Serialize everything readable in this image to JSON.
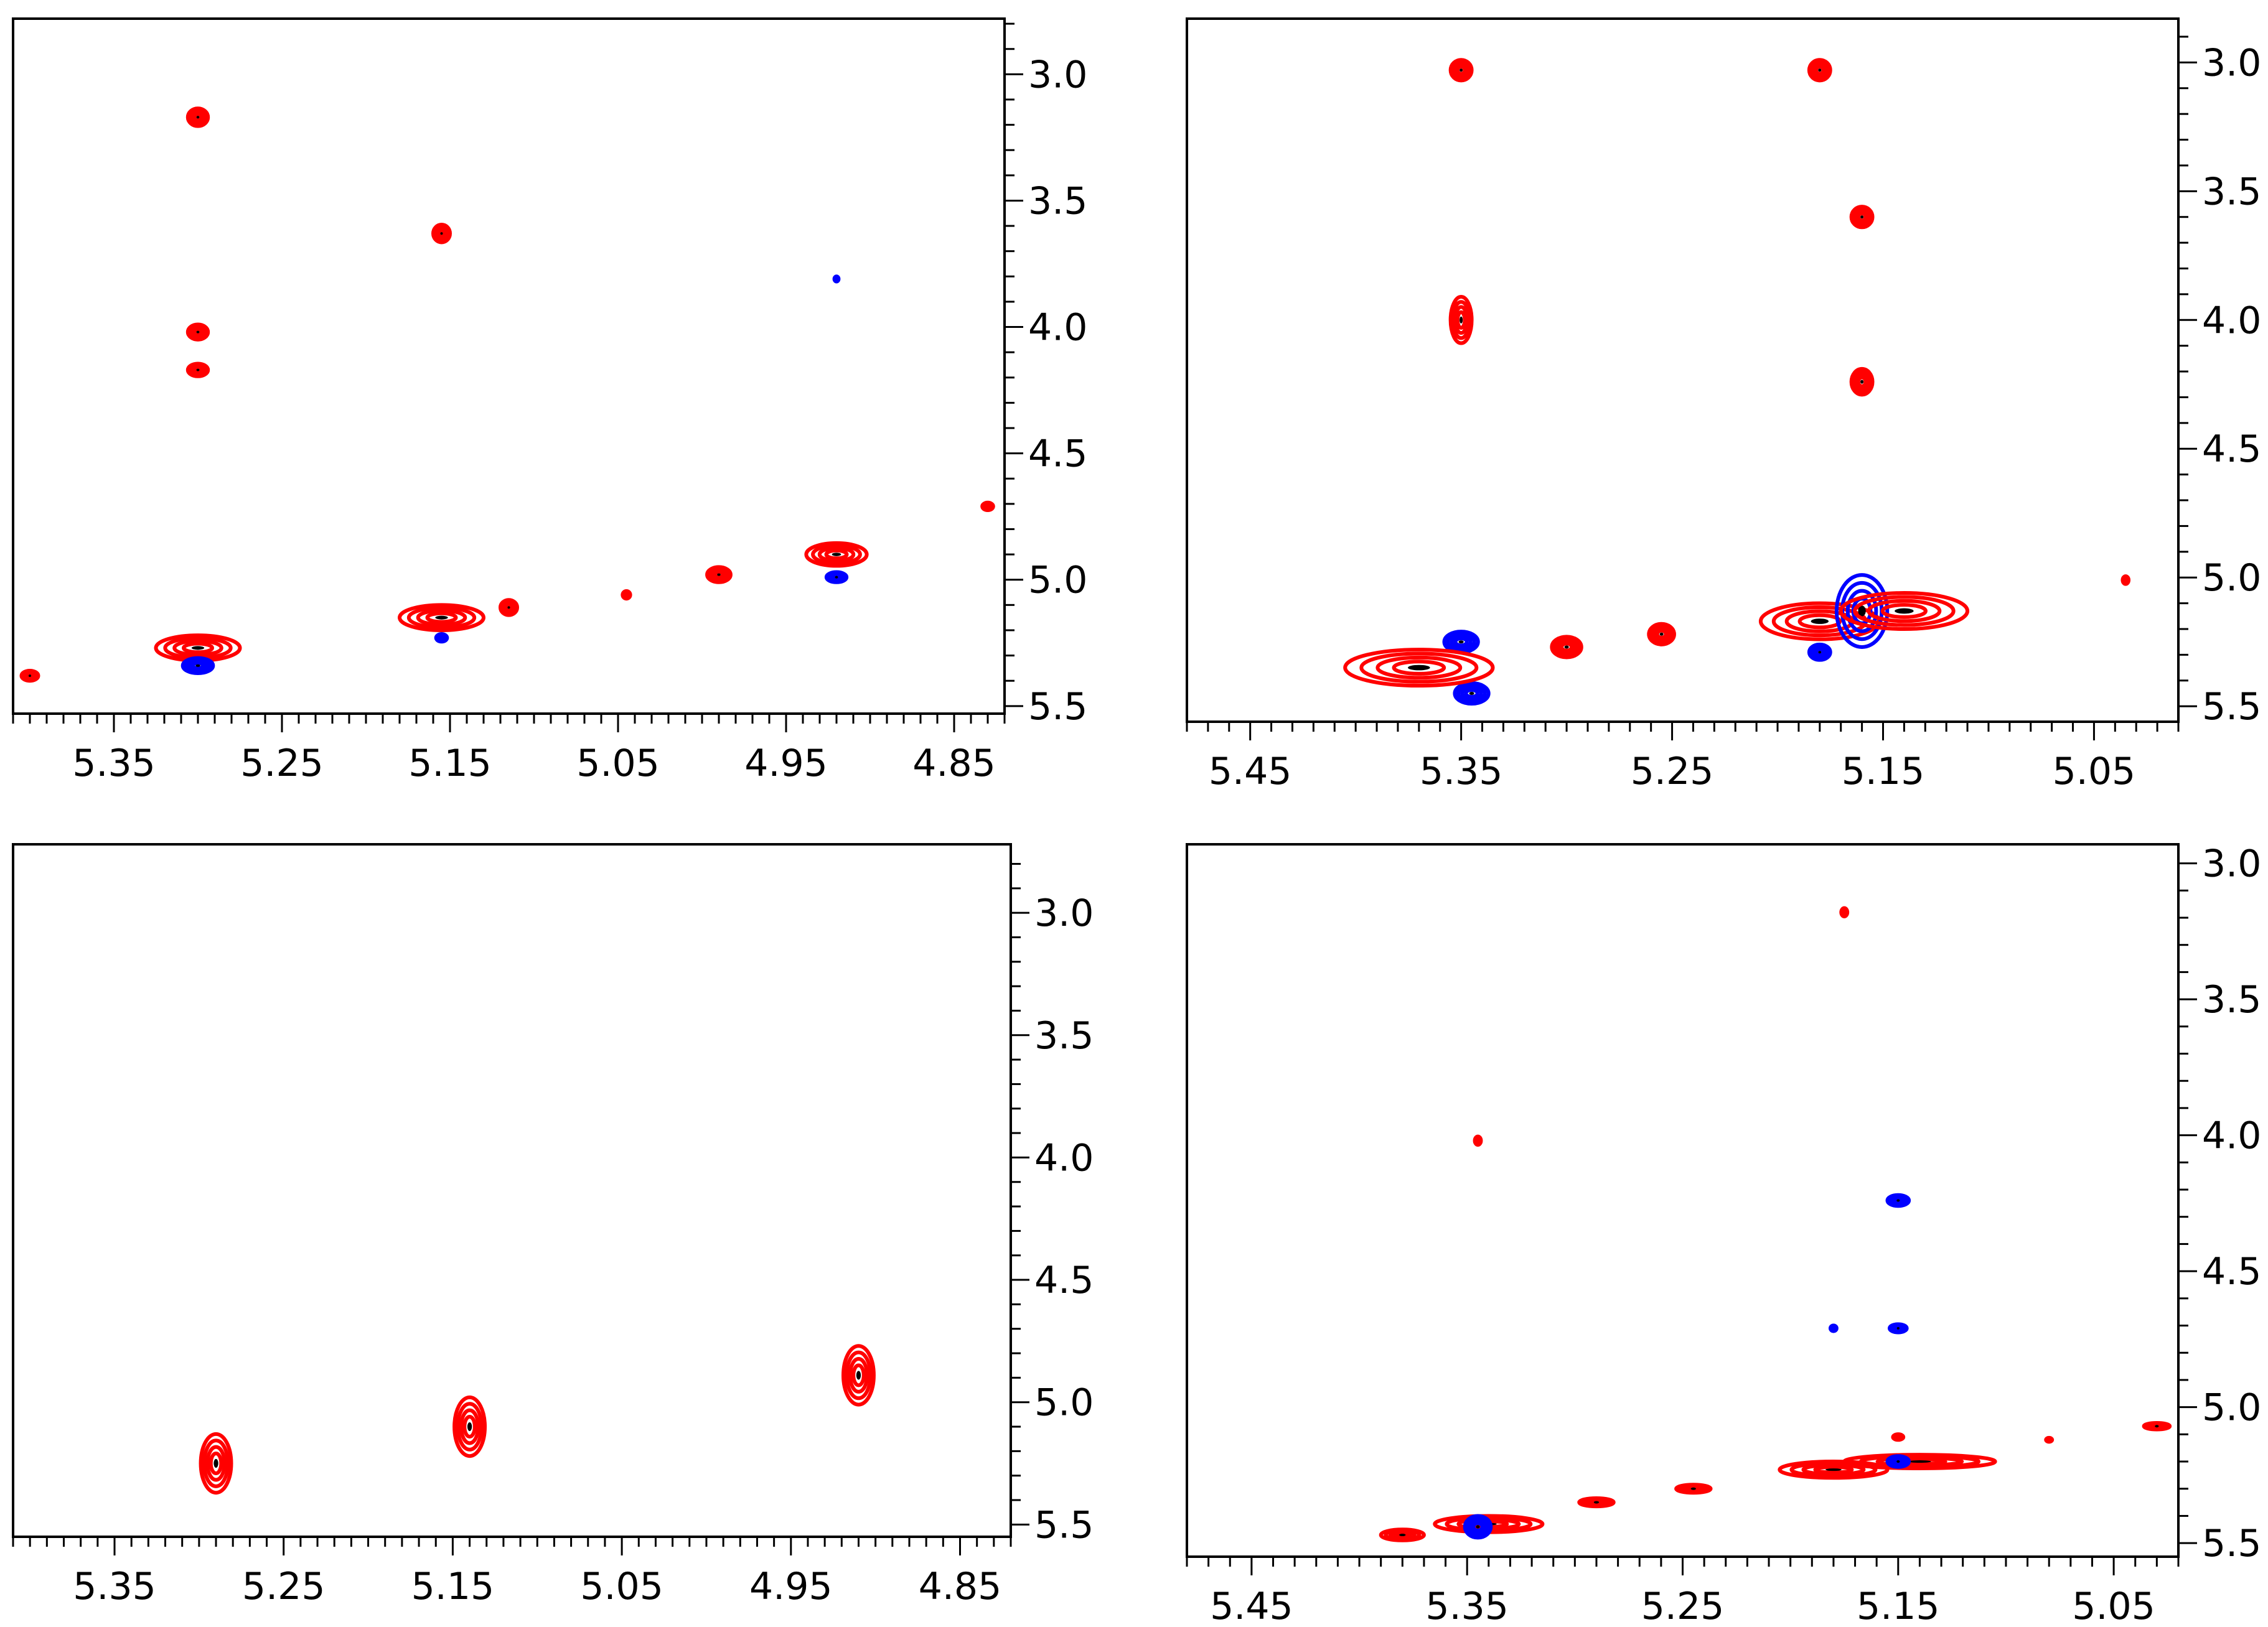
{
  "colors": {
    "positive": "#ff0000",
    "negative": "#0000ff",
    "axis": "#000000"
  },
  "chart_data": [
    {
      "type": "nmr-2d-contour",
      "position": "top-left",
      "title": "",
      "xlabel": "",
      "ylabel": "",
      "xlim": [
        5.41,
        4.82
      ],
      "ylim": [
        2.78,
        5.53
      ],
      "x_ticks": [
        "5.35",
        "5.25",
        "5.15",
        "5.05",
        "4.95",
        "4.85"
      ],
      "y_ticks": [
        "3.0",
        "3.5",
        "4.0",
        "4.5",
        "5.0",
        "5.5"
      ],
      "peaks": [
        {
          "x": 5.3,
          "y": 3.17,
          "rx": 0.006,
          "ry": 0.035,
          "sign": "positive"
        },
        {
          "x": 5.3,
          "y": 4.02,
          "rx": 0.006,
          "ry": 0.03,
          "sign": "positive"
        },
        {
          "x": 5.3,
          "y": 4.17,
          "rx": 0.006,
          "ry": 0.025,
          "sign": "positive"
        },
        {
          "x": 5.155,
          "y": 3.63,
          "rx": 0.005,
          "ry": 0.035,
          "sign": "positive"
        },
        {
          "x": 5.3,
          "y": 5.27,
          "rx": 0.025,
          "ry": 0.05,
          "sign": "positive"
        },
        {
          "x": 5.3,
          "y": 5.34,
          "rx": 0.009,
          "ry": 0.03,
          "sign": "negative"
        },
        {
          "x": 5.155,
          "y": 5.15,
          "rx": 0.025,
          "ry": 0.05,
          "sign": "positive"
        },
        {
          "x": 5.155,
          "y": 5.23,
          "rx": 0.004,
          "ry": 0.02,
          "sign": "negative"
        },
        {
          "x": 5.115,
          "y": 5.11,
          "rx": 0.005,
          "ry": 0.03,
          "sign": "positive"
        },
        {
          "x": 5.045,
          "y": 5.06,
          "rx": 0.003,
          "ry": 0.02,
          "sign": "positive"
        },
        {
          "x": 4.99,
          "y": 4.98,
          "rx": 0.007,
          "ry": 0.03,
          "sign": "positive"
        },
        {
          "x": 4.92,
          "y": 4.9,
          "rx": 0.018,
          "ry": 0.045,
          "sign": "positive"
        },
        {
          "x": 4.92,
          "y": 4.99,
          "rx": 0.006,
          "ry": 0.02,
          "sign": "negative"
        },
        {
          "x": 4.92,
          "y": 3.81,
          "rx": 0.002,
          "ry": 0.015,
          "sign": "negative"
        },
        {
          "x": 5.4,
          "y": 5.38,
          "rx": 0.005,
          "ry": 0.02,
          "sign": "positive"
        },
        {
          "x": 4.83,
          "y": 4.71,
          "rx": 0.004,
          "ry": 0.02,
          "sign": "positive"
        }
      ]
    },
    {
      "type": "nmr-2d-contour",
      "position": "top-right",
      "title": "",
      "xlabel": "",
      "ylabel": "",
      "xlim": [
        5.48,
        5.01
      ],
      "ylim": [
        2.83,
        5.56
      ],
      "x_ticks": [
        "5.45",
        "5.35",
        "5.25",
        "5.15",
        "5.05"
      ],
      "y_ticks": [
        "3.0",
        "3.5",
        "4.0",
        "4.5",
        "5.0",
        "5.5"
      ],
      "peaks": [
        {
          "x": 5.35,
          "y": 3.03,
          "rx": 0.005,
          "ry": 0.04,
          "sign": "positive"
        },
        {
          "x": 5.35,
          "y": 4.0,
          "rx": 0.005,
          "ry": 0.09,
          "sign": "positive"
        },
        {
          "x": 5.18,
          "y": 3.03,
          "rx": 0.005,
          "ry": 0.04,
          "sign": "positive"
        },
        {
          "x": 5.16,
          "y": 3.6,
          "rx": 0.005,
          "ry": 0.04,
          "sign": "positive"
        },
        {
          "x": 5.16,
          "y": 4.24,
          "rx": 0.005,
          "ry": 0.05,
          "sign": "positive"
        },
        {
          "x": 5.35,
          "y": 5.25,
          "rx": 0.008,
          "ry": 0.04,
          "sign": "negative"
        },
        {
          "x": 5.345,
          "y": 5.45,
          "rx": 0.008,
          "ry": 0.04,
          "sign": "negative"
        },
        {
          "x": 5.37,
          "y": 5.35,
          "rx": 0.035,
          "ry": 0.07,
          "sign": "positive"
        },
        {
          "x": 5.3,
          "y": 5.27,
          "rx": 0.007,
          "ry": 0.04,
          "sign": "positive"
        },
        {
          "x": 5.255,
          "y": 5.22,
          "rx": 0.006,
          "ry": 0.04,
          "sign": "positive"
        },
        {
          "x": 5.18,
          "y": 5.17,
          "rx": 0.028,
          "ry": 0.07,
          "sign": "positive"
        },
        {
          "x": 5.16,
          "y": 5.13,
          "rx": 0.012,
          "ry": 0.14,
          "sign": "negative"
        },
        {
          "x": 5.14,
          "y": 5.13,
          "rx": 0.03,
          "ry": 0.07,
          "sign": "positive"
        },
        {
          "x": 5.18,
          "y": 5.29,
          "rx": 0.005,
          "ry": 0.03,
          "sign": "negative"
        },
        {
          "x": 5.035,
          "y": 5.01,
          "rx": 0.002,
          "ry": 0.02,
          "sign": "positive"
        }
      ]
    },
    {
      "type": "nmr-2d-contour",
      "position": "bottom-left",
      "title": "",
      "xlabel": "",
      "ylabel": "",
      "xlim": [
        5.41,
        4.82
      ],
      "ylim": [
        2.72,
        5.55
      ],
      "x_ticks": [
        "5.35",
        "5.25",
        "5.15",
        "5.05",
        "4.95",
        "4.85"
      ],
      "y_ticks": [
        "3.0",
        "3.5",
        "4.0",
        "4.5",
        "5.0",
        "5.5"
      ],
      "peaks": [
        {
          "x": 5.29,
          "y": 5.25,
          "rx": 0.009,
          "ry": 0.12,
          "sign": "positive"
        },
        {
          "x": 5.14,
          "y": 5.1,
          "rx": 0.009,
          "ry": 0.12,
          "sign": "positive"
        },
        {
          "x": 4.91,
          "y": 4.89,
          "rx": 0.009,
          "ry": 0.12,
          "sign": "positive"
        }
      ]
    },
    {
      "type": "nmr-2d-contour",
      "position": "bottom-right",
      "title": "",
      "xlabel": "",
      "ylabel": "",
      "xlim": [
        5.48,
        5.02
      ],
      "ylim": [
        2.93,
        5.55
      ],
      "x_ticks": [
        "5.45",
        "5.35",
        "5.25",
        "5.15",
        "5.05"
      ],
      "y_ticks": [
        "3.0",
        "3.5",
        "4.0",
        "4.5",
        "5.0",
        "5.5"
      ],
      "peaks": [
        {
          "x": 5.175,
          "y": 3.18,
          "rx": 0.002,
          "ry": 0.02,
          "sign": "positive"
        },
        {
          "x": 5.345,
          "y": 4.02,
          "rx": 0.002,
          "ry": 0.02,
          "sign": "positive"
        },
        {
          "x": 5.15,
          "y": 4.24,
          "rx": 0.005,
          "ry": 0.02,
          "sign": "negative"
        },
        {
          "x": 5.15,
          "y": 4.71,
          "rx": 0.004,
          "ry": 0.015,
          "sign": "negative"
        },
        {
          "x": 5.18,
          "y": 4.71,
          "rx": 0.002,
          "ry": 0.015,
          "sign": "negative"
        },
        {
          "x": 5.38,
          "y": 5.47,
          "rx": 0.01,
          "ry": 0.02,
          "sign": "positive"
        },
        {
          "x": 5.34,
          "y": 5.43,
          "rx": 0.025,
          "ry": 0.03,
          "sign": "positive"
        },
        {
          "x": 5.345,
          "y": 5.44,
          "rx": 0.006,
          "ry": 0.04,
          "sign": "negative"
        },
        {
          "x": 5.29,
          "y": 5.35,
          "rx": 0.008,
          "ry": 0.015,
          "sign": "positive"
        },
        {
          "x": 5.245,
          "y": 5.3,
          "rx": 0.008,
          "ry": 0.015,
          "sign": "positive"
        },
        {
          "x": 5.18,
          "y": 5.23,
          "rx": 0.025,
          "ry": 0.03,
          "sign": "positive"
        },
        {
          "x": 5.14,
          "y": 5.2,
          "rx": 0.035,
          "ry": 0.025,
          "sign": "positive"
        },
        {
          "x": 5.15,
          "y": 5.2,
          "rx": 0.005,
          "ry": 0.02,
          "sign": "negative"
        },
        {
          "x": 5.15,
          "y": 5.11,
          "rx": 0.003,
          "ry": 0.015,
          "sign": "positive"
        },
        {
          "x": 5.08,
          "y": 5.12,
          "rx": 0.002,
          "ry": 0.012,
          "sign": "positive"
        },
        {
          "x": 5.03,
          "y": 5.07,
          "rx": 0.006,
          "ry": 0.012,
          "sign": "positive"
        }
      ]
    }
  ]
}
